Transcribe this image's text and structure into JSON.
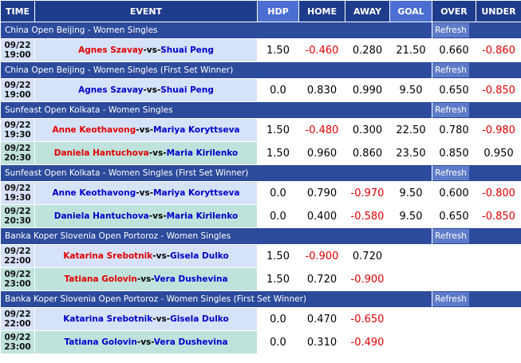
{
  "header": {
    "columns": [
      "TIME",
      "EVENT",
      "HDP",
      "HOME",
      "AWAY",
      "GOAL",
      "OVER",
      "UNDER"
    ]
  },
  "groups": [
    {
      "league": "China Open Beijing - Women Singles",
      "refresh": "Refresh",
      "matches": [
        {
          "date": "09/22",
          "time": "19:00",
          "home": "Agnes Szavay",
          "home_color": "red",
          "vs": "-vs-",
          "away": "Shuai Peng",
          "away_color": "blue",
          "hdp": "1.50",
          "home_odds": "-0.460",
          "away_odds": "0.280",
          "goal": "21.50",
          "over": "0.660",
          "under": "-0.860"
        }
      ]
    },
    {
      "league": "China Open Beijing - Women Singles (First Set Winner)",
      "refresh": "Refresh",
      "matches": [
        {
          "date": "09/22",
          "time": "19:00",
          "home": "Agnes Szavay",
          "home_color": "blue",
          "vs": "-vs-",
          "away": "Shuai Peng",
          "away_color": "blue",
          "hdp": "0.0",
          "home_odds": "0.830",
          "away_odds": "0.990",
          "goal": "9.50",
          "over": "0.650",
          "under": "-0.850"
        }
      ]
    },
    {
      "league": "Sunfeast Open Kolkata - Women Singles",
      "refresh": "Refresh",
      "matches": [
        {
          "date": "09/22",
          "time": "19:30",
          "home": "Anne Keothavong",
          "home_color": "red",
          "vs": "-vs-",
          "away": "Mariya Koryttseva",
          "away_color": "blue",
          "hdp": "1.50",
          "home_odds": "-0.480",
          "away_odds": "0.300",
          "goal": "22.50",
          "over": "0.780",
          "under": "-0.980"
        },
        {
          "date": "09/22",
          "time": "20:30",
          "home": "Daniela Hantuchova",
          "home_color": "red",
          "vs": "-vs-",
          "away": "Maria Kirilenko",
          "away_color": "blue",
          "hdp": "1.50",
          "home_odds": "0.960",
          "away_odds": "0.860",
          "goal": "23.50",
          "over": "0.850",
          "under": "0.950"
        }
      ]
    },
    {
      "league": "Sunfeast Open Kolkata - Women Singles (First Set Winner)",
      "refresh": "Refresh",
      "matches": [
        {
          "date": "09/22",
          "time": "19:30",
          "home": "Anne Keothavong",
          "home_color": "blue",
          "vs": "-vs-",
          "away": "Mariya Koryttseva",
          "away_color": "blue",
          "hdp": "0.0",
          "home_odds": "0.790",
          "away_odds": "-0.970",
          "goal": "9.50",
          "over": "0.600",
          "under": "-0.800"
        },
        {
          "date": "09/22",
          "time": "20:30",
          "home": "Daniela Hantuchova",
          "home_color": "blue",
          "vs": "-vs-",
          "away": "Maria Kirilenko",
          "away_color": "blue",
          "hdp": "0.0",
          "home_odds": "0.400",
          "away_odds": "-0.580",
          "goal": "9.50",
          "over": "0.650",
          "under": "-0.850"
        }
      ]
    },
    {
      "league": "Banka Koper Slovenia Open Portoroz - Women Singles",
      "refresh": "Refresh",
      "matches": [
        {
          "date": "09/22",
          "time": "22:00",
          "home": "Katarina Srebotnik",
          "home_color": "red",
          "vs": "-vs-",
          "away": "Gisela Dulko",
          "away_color": "blue",
          "hdp": "1.50",
          "home_odds": "-0.900",
          "away_odds": "0.720"
        },
        {
          "date": "09/22",
          "time": "23:00",
          "home": "Tatiana Golovin",
          "home_color": "red",
          "vs": "-vs-",
          "away": "Vera Dushevina",
          "away_color": "blue",
          "hdp": "1.50",
          "home_odds": "0.720",
          "away_odds": "-0.900"
        }
      ]
    },
    {
      "league": "Banka Koper Slovenia Open Portoroz - Women Singles (First Set Winner)",
      "refresh": "Refresh",
      "matches": [
        {
          "date": "09/22",
          "time": "22:00",
          "home": "Katarina Srebotnik",
          "home_color": "blue",
          "vs": "-vs-",
          "away": "Gisela Dulko",
          "away_color": "blue",
          "hdp": "0.0",
          "home_odds": "0.470",
          "away_odds": "-0.650"
        },
        {
          "date": "09/22",
          "time": "23:00",
          "home": "Tatiana Golovin",
          "home_color": "blue",
          "vs": "-vs-",
          "away": "Vera Dushevina",
          "away_color": "blue",
          "hdp": "0.0",
          "home_odds": "0.310",
          "away_odds": "-0.490"
        }
      ]
    }
  ]
}
